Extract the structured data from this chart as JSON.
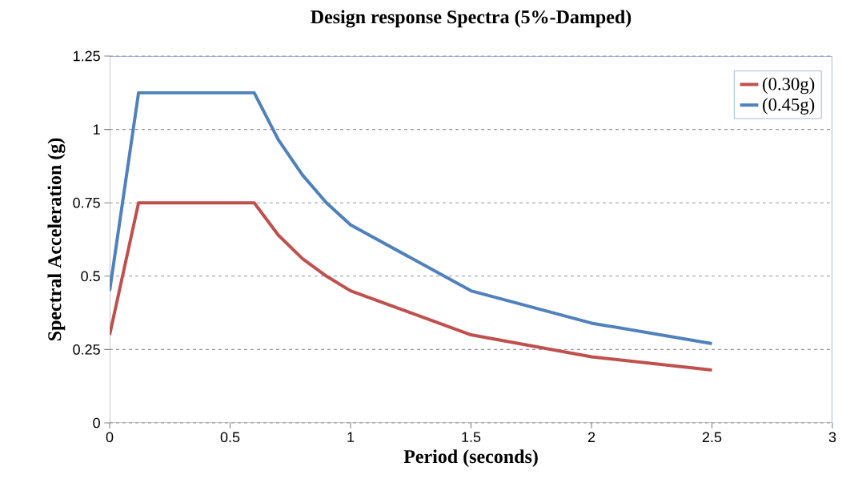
{
  "chart_data": {
    "type": "line",
    "title": "Design response Spectra (5%-Damped)",
    "xlabel": "Period (seconds)",
    "ylabel": "Spectral Acceleration (g)",
    "x": [
      0,
      0.12,
      0.6,
      0.7,
      0.8,
      0.9,
      1.0,
      1.5,
      2.0,
      2.5
    ],
    "series": [
      {
        "name": "(0.30g)",
        "color": "#c0504d",
        "values": [
          0.3,
          0.75,
          0.75,
          0.64,
          0.56,
          0.5,
          0.45,
          0.3,
          0.225,
          0.18
        ]
      },
      {
        "name": "(0.45g)",
        "color": "#4f81bd",
        "values": [
          0.45,
          1.125,
          1.125,
          0.965,
          0.845,
          0.75,
          0.675,
          0.45,
          0.34,
          0.27
        ]
      }
    ],
    "xlim": [
      0,
      3
    ],
    "xticks": [
      0,
      0.5,
      1,
      1.5,
      2,
      2.5,
      3
    ],
    "ylim": [
      0,
      1.25
    ],
    "yticks": [
      0,
      0.25,
      0.5,
      0.75,
      1,
      1.25
    ],
    "grid": "y",
    "legend": "top right",
    "marker": "none",
    "line_style": "solid"
  }
}
